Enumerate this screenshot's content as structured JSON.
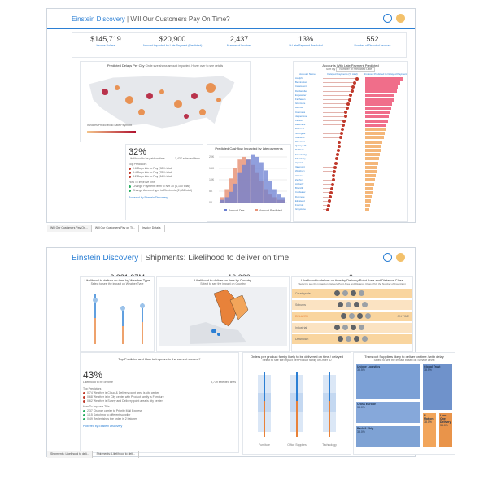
{
  "colors": {
    "accent": "#2b7fd4",
    "orange": "#e8823a",
    "red": "#c0392b",
    "blue": "#6b7fd1",
    "map_land": "#e6e8ec"
  },
  "dash1": {
    "brand": "Einstein Discovery",
    "title": "| Will Our Customers Pay On Time?",
    "kpis": [
      {
        "value": "$145,719",
        "label": "Invoice Dollars"
      },
      {
        "value": "$20,900",
        "label": "Amount Impacted by Late Payment (Predicted)"
      },
      {
        "value": "2,437",
        "label": "Number of Invoices"
      },
      {
        "value": "13%",
        "label": "% Late Payment Predicted"
      },
      {
        "value": "552",
        "label": "Number of Disputed Invoices"
      }
    ],
    "map_title": "Predicted Delays Per City",
    "map_note": "Circle size shows amount impacted. Hover over to see details",
    "map_legend_label": "Invoices Predicted to Late Payment",
    "accounts_title": "Accounts With Late Payment Predicted",
    "accounts_sort": "Sort By",
    "accounts_sort_value": "Number of Predicted Late",
    "accounts_cols": [
      "Account Name",
      "Delayed Payments (% total)",
      "Invoices Predicted to Delayed Payment"
    ],
    "accounts": [
      "Adelphi",
      "Bennington",
      "Catamount",
      "Dardanelles",
      "Edgewater",
      "Fairhaven",
      "Glenmore",
      "Harrow",
      "Inverness",
      "Jasperwood",
      "Kestrel",
      "Lakemont",
      "Millbrook",
      "Northgate",
      "Oakhurst",
      "Pinecrest",
      "Quarry Hill",
      "Redfield",
      "Stonebridge",
      "Thornbury",
      "Upland",
      "Valemont",
      "Westbury",
      "Yarrow",
      "Zephyr",
      "Amberly",
      "Briarcliff",
      "Coldwater",
      "Dunmore",
      "Elmstead",
      "Foxcroft",
      "Greystone"
    ],
    "pct_vals": [
      0.92,
      0.85,
      0.8,
      0.78,
      0.72,
      0.7,
      0.66,
      0.63,
      0.6,
      0.58,
      0.55,
      0.52,
      0.5,
      0.48,
      0.45,
      0.42,
      0.4,
      0.38,
      0.36,
      0.34,
      0.32,
      0.3,
      0.28,
      0.26,
      0.24,
      0.22,
      0.2,
      0.18,
      0.16,
      0.14,
      0.12,
      0.1
    ],
    "likelihood": {
      "value": "32%",
      "label": "Likelihood to be paid on time",
      "sub": "1,437 selected lines",
      "top_label": "Top Predictors",
      "predictors": [
        "0.6 Days late to Pay (98% total)",
        "3.4 Days late to Pay (78% total)",
        "4.2 Days late to Pay (64% total)"
      ],
      "improve_label": "How To Improve This",
      "improve": [
        "Change Payment Term to Net 30 (4,100 total)",
        "Change Account type to Electronic (2,086 total)"
      ],
      "footer": "Powered by Einstein Discovery"
    },
    "cashflow_title": "Predicted Cashflow Impacted by late payments",
    "cashflow_yticks": [
      "20K",
      "15K",
      "10K",
      "5K",
      "0K"
    ],
    "cashflow_legend": [
      "Amount Due",
      "Amount Predicted"
    ],
    "cashflow_data": {
      "due": [
        1,
        2,
        4,
        7,
        11,
        14,
        16,
        18,
        17,
        15,
        12,
        8,
        5,
        3,
        2
      ],
      "pred": [
        2,
        5,
        9,
        13,
        16,
        17,
        16,
        14,
        11,
        8,
        5,
        3,
        2,
        1,
        1
      ]
    },
    "tabs": [
      "Will Our Customers Pay On...",
      "Will Our Customers Pay on Ti...",
      "Invoice Details"
    ]
  },
  "dash2": {
    "brand": "Einstein Discovery",
    "title": "| Shipments: Likelihood to deliver on time",
    "kpis": [
      {
        "value": "2,981.97M",
        "label": "Unique ordered quantity"
      },
      {
        "value": "10,000",
        "label": "Number of orders"
      },
      {
        "value": "6",
        "label": "Number of Transport Suppliers"
      }
    ],
    "weather_title": "Likelihood to deliver on time by Weather Type",
    "weather_sub": "Select to see the impact on Weather Type",
    "country_title": "Likelihood to deliver on time by Country",
    "country_sub": "Select to see the impact on Country",
    "delivery_title": "Likelihood to deliver on time by Delivery Point Area and Distance Class",
    "delivery_sub": "Select to see the impact on Delivery Point Area and Distance Class (Pick the Number of Countries)",
    "delivery_rows": [
      "Countryside",
      "Suburbs",
      "DELAYED",
      "Industrial",
      "Downtown"
    ],
    "delivery_right": "ON TIME",
    "top_predictor_title": "Top Predictor and How to Improve in the current context?",
    "likelihood": {
      "value": "43%",
      "label": "Likelihood to be on time",
      "sub": "8,779 selected lines",
      "top_label": "Top Predictors",
      "predictors": [
        "0.74 Weather is Cloud & Delivery point area is city center",
        "0.68 Weather is in City center with Product family is Furniture",
        "0.62 Weather is Sunny and Delivery point area is city center"
      ],
      "improve_label": "How To Improve This",
      "improve": [
        "2.37 Change carrier to Priority Mail Express",
        "1.15 Switching to different supplier",
        "0.49 Replenishes the order in 2 batches"
      ],
      "footer": "Powered by Einstein Discovery"
    },
    "orders_title": "Orders per product family likely to be delivered on time / delayed",
    "orders_sub": "Select to see the impact per Product family or Order ID",
    "orders_x": [
      "Furniture",
      "Office Supplies",
      "Technology"
    ],
    "suppliers_title": "Transport Suppliers likely to deliver on time / with delay",
    "suppliers_sub": "Select to see the impact based on Service Level",
    "suppliers": [
      {
        "name": "Unique Logistics",
        "pct": "38.5%"
      },
      {
        "name": "Global Trust",
        "pct": "38.5%"
      },
      {
        "name": "Cross Europe",
        "pct": "38.0%"
      },
      {
        "name": "Pack & Ship",
        "pct": "38.0%"
      },
      {
        "name": "N-Motion",
        "pct": "38.0%"
      },
      {
        "name": "Lion One Delivery",
        "pct": "38.0%"
      }
    ],
    "tabs": [
      "Shipments: Likelihood to deli...",
      "Shipments: Likelihood to deli..."
    ]
  }
}
